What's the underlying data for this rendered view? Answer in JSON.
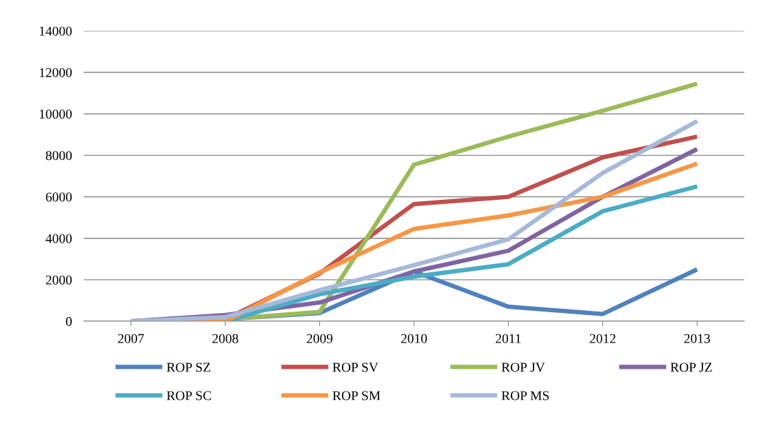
{
  "chart_data": {
    "type": "line",
    "categories": [
      "2007",
      "2008",
      "2009",
      "2010",
      "2011",
      "2012",
      "2013"
    ],
    "ylim": [
      0,
      14000
    ],
    "yticks": [
      0,
      2000,
      4000,
      6000,
      8000,
      10000,
      12000,
      14000
    ],
    "grid": "y",
    "legend": "bottom",
    "marker": "none",
    "series": [
      {
        "name": "ROP SZ",
        "color": "#4f81bd",
        "values": [
          0,
          100,
          400,
          2400,
          700,
          350,
          2500
        ]
      },
      {
        "name": "ROP SV",
        "color": "#c0504d",
        "values": [
          0,
          100,
          2300,
          5650,
          6000,
          7900,
          8900
        ]
      },
      {
        "name": "ROP JV",
        "color": "#9bbb59",
        "values": [
          0,
          100,
          450,
          7550,
          8900,
          10150,
          11450
        ]
      },
      {
        "name": "ROP JZ",
        "color": "#8064a2",
        "values": [
          0,
          300,
          900,
          2400,
          3400,
          6000,
          8300
        ]
      },
      {
        "name": "ROP SC",
        "color": "#4bacc6",
        "values": [
          0,
          0,
          1300,
          2150,
          2750,
          5300,
          6500
        ]
      },
      {
        "name": "ROP SM",
        "color": "#f79646",
        "values": [
          0,
          0,
          2350,
          4450,
          5100,
          6000,
          7600
        ]
      },
      {
        "name": "ROP MS",
        "color": "#a5b9d9",
        "values": [
          0,
          200,
          1500,
          2700,
          3950,
          7150,
          9650
        ]
      }
    ]
  }
}
